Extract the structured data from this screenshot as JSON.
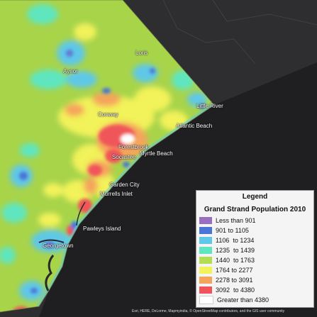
{
  "map": {
    "place_labels": [
      {
        "id": "loris",
        "text": "Loris"
      },
      {
        "id": "aynor",
        "text": "Aynor"
      },
      {
        "id": "little-river",
        "text": "Little River"
      },
      {
        "id": "conway",
        "text": "Conway"
      },
      {
        "id": "atlantic-beach",
        "text": "Atlantic Beach"
      },
      {
        "id": "forestbrook",
        "text": "Forestbrook"
      },
      {
        "id": "myrtle-beach",
        "text": "Myrtle Beach"
      },
      {
        "id": "socastee",
        "text": "Socastee"
      },
      {
        "id": "garden-city",
        "text": "Garden City"
      },
      {
        "id": "murrells-inlet",
        "text": "Murrells Inlet"
      },
      {
        "id": "pawleys-island",
        "text": "Pawleys Island"
      },
      {
        "id": "georgetown",
        "text": "Georgetown"
      }
    ],
    "attribution": "Esri, HERE, DeLorme, Mapmyindia, © OpenStreetMap contributors, and the GIS user community"
  },
  "legend": {
    "heading": "Legend",
    "title": "Grand Strand Population 2010",
    "classes": [
      {
        "label": "Less than 901",
        "color": "#9b6fc0"
      },
      {
        "label": "901 to 1105",
        "color": "#4a74d8"
      },
      {
        "label": "1106  to 1234",
        "color": "#5ec8e8"
      },
      {
        "label": "1235  to 1439",
        "color": "#5ee6c0"
      },
      {
        "label": "1440  to 1763",
        "color": "#b2dc52"
      },
      {
        "label": "1764 to 2277",
        "color": "#f2f25a"
      },
      {
        "label": "2278 to 3091",
        "color": "#f5a45c"
      },
      {
        "label": "3092  to 4380",
        "color": "#f0545a"
      },
      {
        "label": "Greater than 4380",
        "color": "#ffffff"
      }
    ]
  },
  "colors": {
    "basemap_land": "#2e2e30",
    "ocean": "#1f1f21",
    "region_base": "#a8d44a"
  }
}
